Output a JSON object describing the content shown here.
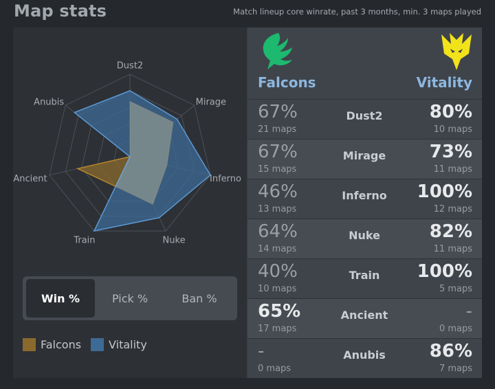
{
  "header": {
    "title": "Map stats",
    "subtitle": "Match lineup core winrate, past 3 months, min. 3 maps played"
  },
  "radar": {
    "axes": [
      "Dust2",
      "Mirage",
      "Inferno",
      "Nuke",
      "Train",
      "Ancient",
      "Anubis"
    ],
    "max": 100,
    "rings": [
      20,
      40,
      60,
      80,
      100
    ],
    "series": [
      {
        "name": "Falcons",
        "color": "#8a6a2c",
        "stroke": "#b7862e",
        "values": [
          67,
          67,
          46,
          64,
          40,
          65,
          0
        ]
      },
      {
        "name": "Vitality",
        "color": "#3e6a96",
        "stroke": "#5b9ad6",
        "values": [
          80,
          73,
          100,
          82,
          100,
          0,
          86
        ]
      }
    ]
  },
  "tabs": [
    {
      "label": "Win %",
      "active": true
    },
    {
      "label": "Pick %",
      "active": false
    },
    {
      "label": "Ban %",
      "active": false
    }
  ],
  "legend": [
    {
      "label": "Falcons",
      "color": "#8a6a2c"
    },
    {
      "label": "Vitality",
      "color": "#3e6a96"
    }
  ],
  "teams": {
    "left": {
      "name": "Falcons",
      "logo": "falcons-logo-icon",
      "logo_color": "#1db96f"
    },
    "right": {
      "name": "Vitality",
      "logo": "vitality-logo-icon",
      "logo_color": "#f2e21a"
    }
  },
  "rows": [
    {
      "map": "Dust2",
      "falcons_pct": "67%",
      "falcons_maps": "21 maps",
      "vitality_pct": "80%",
      "vitality_maps": "10 maps"
    },
    {
      "map": "Mirage",
      "falcons_pct": "67%",
      "falcons_maps": "15 maps",
      "vitality_pct": "73%",
      "vitality_maps": "11 maps"
    },
    {
      "map": "Inferno",
      "falcons_pct": "46%",
      "falcons_maps": "13 maps",
      "vitality_pct": "100%",
      "vitality_maps": "12 maps"
    },
    {
      "map": "Nuke",
      "falcons_pct": "64%",
      "falcons_maps": "14 maps",
      "vitality_pct": "82%",
      "vitality_maps": "11 maps"
    },
    {
      "map": "Train",
      "falcons_pct": "40%",
      "falcons_maps": "10 maps",
      "vitality_pct": "100%",
      "vitality_maps": "5 maps"
    },
    {
      "map": "Ancient",
      "falcons_pct": "65%",
      "falcons_maps": "17 maps",
      "vitality_pct": "-",
      "vitality_maps": "0 maps"
    },
    {
      "map": "Anubis",
      "falcons_pct": "-",
      "falcons_maps": "0 maps",
      "vitality_pct": "86%",
      "vitality_maps": "7 maps"
    }
  ]
}
